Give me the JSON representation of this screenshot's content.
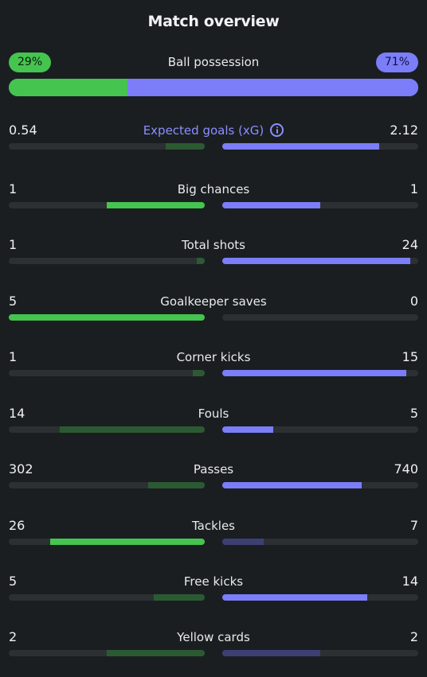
{
  "title": "Match overview",
  "possession": {
    "label": "Ball possession",
    "home_text": "29%",
    "away_text": "71%",
    "home_fraction": 0.29,
    "colors": {
      "home": "#45c44f",
      "away": "#7b7ef8"
    }
  },
  "stats": [
    {
      "label": "Expected goals (xG)",
      "home": "0.54",
      "away": "2.12",
      "home_fill": 0.2,
      "away_fill": 0.8,
      "home_win": false,
      "away_win": true,
      "accent": true,
      "info_icon": "info-icon"
    },
    {
      "label": "Big chances",
      "home": "1",
      "away": "1",
      "home_fill": 0.5,
      "away_fill": 0.5,
      "home_win": true,
      "away_win": true
    },
    {
      "label": "Total shots",
      "home": "1",
      "away": "24",
      "home_fill": 0.04,
      "away_fill": 0.96,
      "home_win": false,
      "away_win": true
    },
    {
      "label": "Goalkeeper saves",
      "home": "5",
      "away": "0",
      "home_fill": 1.0,
      "away_fill": 0.0,
      "home_win": true,
      "away_win": false
    },
    {
      "label": "Corner kicks",
      "home": "1",
      "away": "15",
      "home_fill": 0.06,
      "away_fill": 0.94,
      "home_win": false,
      "away_win": true
    },
    {
      "label": "Fouls",
      "home": "14",
      "away": "5",
      "home_fill": 0.74,
      "away_fill": 0.26,
      "home_win": false,
      "away_win": true
    },
    {
      "label": "Passes",
      "home": "302",
      "away": "740",
      "home_fill": 0.29,
      "away_fill": 0.71,
      "home_win": false,
      "away_win": true
    },
    {
      "label": "Tackles",
      "home": "26",
      "away": "7",
      "home_fill": 0.79,
      "away_fill": 0.21,
      "home_win": true,
      "away_win": false
    },
    {
      "label": "Free kicks",
      "home": "5",
      "away": "14",
      "home_fill": 0.26,
      "away_fill": 0.74,
      "home_win": false,
      "away_win": true
    },
    {
      "label": "Yellow cards",
      "home": "2",
      "away": "2",
      "home_fill": 0.5,
      "away_fill": 0.5,
      "home_win": false,
      "away_win": false
    }
  ]
}
